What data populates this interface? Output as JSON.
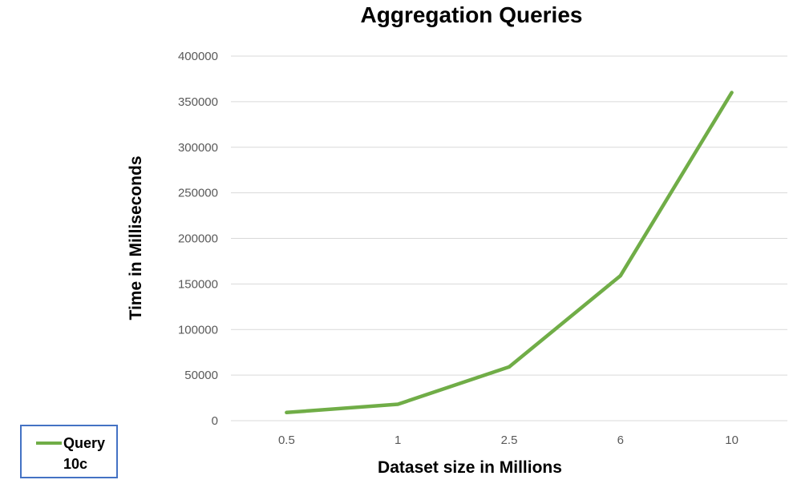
{
  "chart_data": {
    "type": "line",
    "title": "Aggregation Queries",
    "xlabel": "Dataset size in Millions",
    "ylabel": "Time in Milliseconds",
    "categories": [
      "0.5",
      "1",
      "2.5",
      "6",
      "10"
    ],
    "series": [
      {
        "name": "Query 10c",
        "values": [
          9000,
          18000,
          59000,
          159000,
          360000
        ]
      }
    ],
    "ylim": [
      0,
      400000
    ],
    "yticks": [
      "0",
      "50000",
      "100000",
      "150000",
      "200000",
      "250000",
      "300000",
      "350000",
      "400000"
    ],
    "grid": true,
    "legend_position": "bottom-left"
  },
  "colors": {
    "series": "#70ad47",
    "grid": "#d9d9d9",
    "legend_border": "#4472c4"
  }
}
